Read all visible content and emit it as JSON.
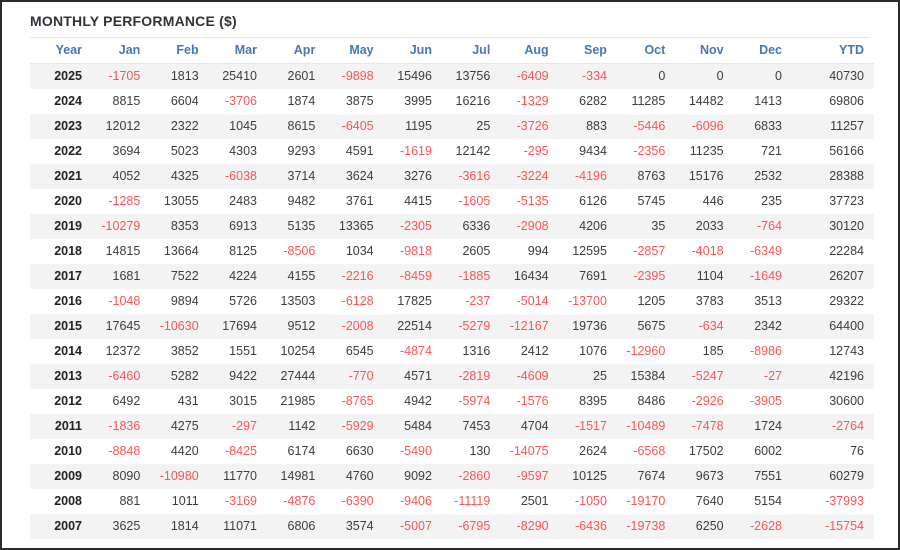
{
  "title": "MONTHLY PERFORMANCE ($)",
  "colors": {
    "header_blue": "#4679b2",
    "negative_red": "#fa5555",
    "positive_dark": "#3d3d3d",
    "stripe_gray": "#f3f3f3",
    "frame_dark": "#2b2b2b"
  },
  "chart_data": {
    "type": "table",
    "title": "MONTHLY PERFORMANCE ($)",
    "headers": [
      "Year",
      "Jan",
      "Feb",
      "Mar",
      "Apr",
      "May",
      "Jun",
      "Jul",
      "Aug",
      "Sep",
      "Oct",
      "Nov",
      "Dec",
      "YTD"
    ],
    "rows": [
      {
        "year": "2025",
        "values": [
          -1705,
          1813,
          25410,
          2601,
          -9898,
          15496,
          13756,
          -6409,
          -334,
          0,
          0,
          0,
          40730
        ]
      },
      {
        "year": "2024",
        "values": [
          8815,
          6604,
          -3706,
          1874,
          3875,
          3995,
          16216,
          -1329,
          6282,
          11285,
          14482,
          1413,
          69806
        ]
      },
      {
        "year": "2023",
        "values": [
          12012,
          2322,
          1045,
          8615,
          -6405,
          1195,
          25,
          -3726,
          883,
          -5446,
          -6096,
          6833,
          11257
        ]
      },
      {
        "year": "2022",
        "values": [
          3694,
          5023,
          4303,
          9293,
          4591,
          -1619,
          12142,
          -295,
          9434,
          -2356,
          11235,
          721,
          56166
        ]
      },
      {
        "year": "2021",
        "values": [
          4052,
          4325,
          -6038,
          3714,
          3624,
          3276,
          -3616,
          -3224,
          -4196,
          8763,
          15176,
          2532,
          28388
        ]
      },
      {
        "year": "2020",
        "values": [
          -1285,
          13055,
          2483,
          9482,
          3761,
          4415,
          -1605,
          -5135,
          6126,
          5745,
          446,
          235,
          37723
        ]
      },
      {
        "year": "2019",
        "values": [
          -10279,
          8353,
          6913,
          5135,
          13365,
          -2305,
          6336,
          -2908,
          4206,
          35,
          2033,
          -764,
          30120
        ]
      },
      {
        "year": "2018",
        "values": [
          14815,
          13664,
          8125,
          -8506,
          1034,
          -9818,
          2605,
          994,
          12595,
          -2857,
          -4018,
          -6349,
          22284
        ]
      },
      {
        "year": "2017",
        "values": [
          1681,
          7522,
          4224,
          4155,
          -2216,
          -8459,
          -1885,
          16434,
          7691,
          -2395,
          1104,
          -1649,
          26207
        ]
      },
      {
        "year": "2016",
        "values": [
          -1048,
          9894,
          5726,
          13503,
          -6128,
          17825,
          -237,
          -5014,
          -13700,
          1205,
          3783,
          3513,
          29322
        ]
      },
      {
        "year": "2015",
        "values": [
          17645,
          -10630,
          17694,
          9512,
          -2008,
          22514,
          -5279,
          -12167,
          19736,
          5675,
          -634,
          2342,
          64400
        ]
      },
      {
        "year": "2014",
        "values": [
          12372,
          3852,
          1551,
          10254,
          6545,
          -4874,
          1316,
          2412,
          1076,
          -12960,
          185,
          -8986,
          12743
        ]
      },
      {
        "year": "2013",
        "values": [
          -6460,
          5282,
          9422,
          27444,
          -770,
          4571,
          -2819,
          -4609,
          25,
          15384,
          -5247,
          -27,
          42196
        ]
      },
      {
        "year": "2012",
        "values": [
          6492,
          431,
          3015,
          21985,
          -8765,
          4942,
          -5974,
          -1576,
          8395,
          8486,
          -2926,
          -3905,
          30600
        ]
      },
      {
        "year": "2011",
        "values": [
          -1836,
          4275,
          -297,
          1142,
          -5929,
          5484,
          7453,
          4704,
          -1517,
          -10489,
          -7478,
          1724,
          -2764
        ]
      },
      {
        "year": "2010",
        "values": [
          -8848,
          4420,
          -8425,
          6174,
          6630,
          -5490,
          130,
          -14075,
          2624,
          -6568,
          17502,
          6002,
          76
        ]
      },
      {
        "year": "2009",
        "values": [
          8090,
          -10980,
          11770,
          14981,
          4760,
          9092,
          -2860,
          -9597,
          10125,
          7674,
          9673,
          7551,
          60279
        ]
      },
      {
        "year": "2008",
        "values": [
          881,
          1011,
          -3169,
          -4876,
          -6390,
          -9406,
          -11119,
          2501,
          -1050,
          -19170,
          7640,
          5154,
          -37993
        ]
      },
      {
        "year": "2007",
        "values": [
          3625,
          1814,
          11071,
          6806,
          3574,
          -5007,
          -6795,
          -8290,
          -6436,
          -19738,
          6250,
          -2628,
          -15754
        ]
      }
    ]
  }
}
